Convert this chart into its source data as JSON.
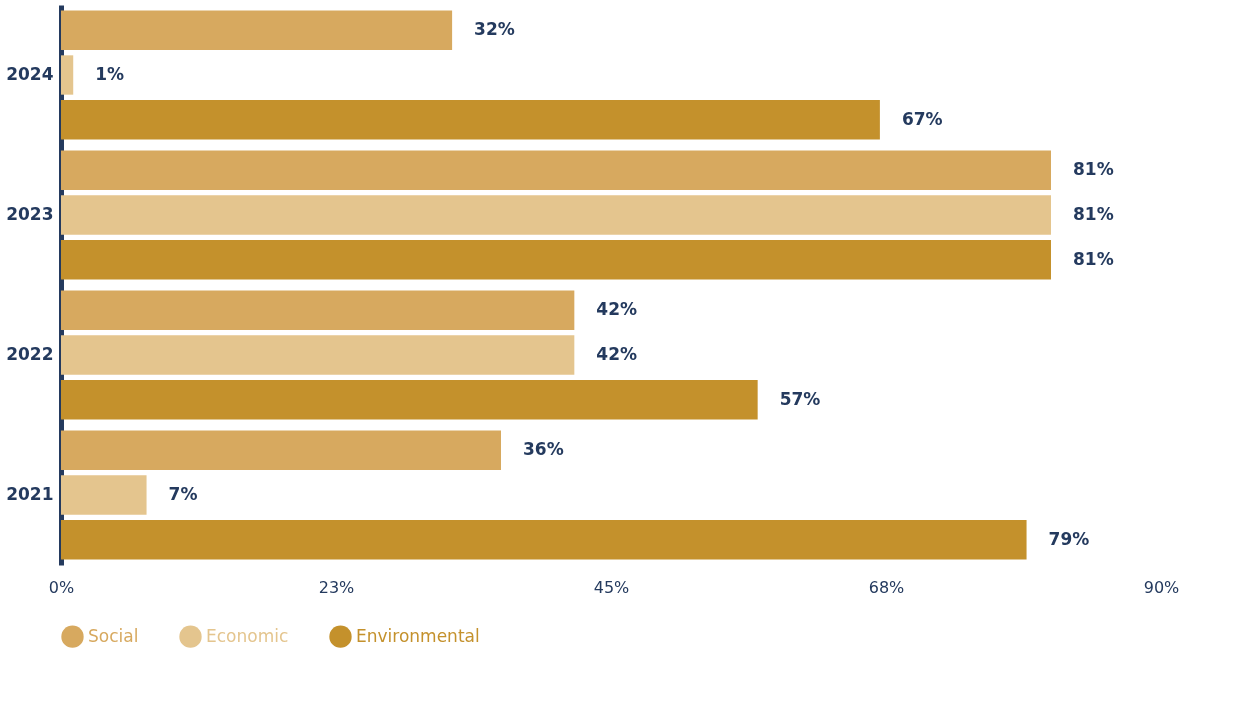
{
  "chart_data": {
    "type": "bar",
    "orientation": "horizontal",
    "categories": [
      "2024",
      "2023",
      "2022",
      "2021"
    ],
    "series": [
      {
        "name": "Social",
        "color": "#d7a95f",
        "values": [
          32,
          81,
          42,
          36
        ],
        "value_labels": [
          "32%",
          "81%",
          "42%",
          "36%"
        ]
      },
      {
        "name": "Economic",
        "color": "#e4c58e",
        "values": [
          1,
          81,
          42,
          7
        ],
        "value_labels": [
          "1%",
          "81%",
          "42%",
          "7%"
        ]
      },
      {
        "name": "Environmental",
        "color": "#c4912c",
        "values": [
          67,
          81,
          57,
          79
        ],
        "value_labels": [
          "67%",
          "81%",
          "57%",
          "79%"
        ]
      }
    ],
    "xlim": [
      0,
      90
    ],
    "xticks": [
      {
        "value": 0,
        "label": "0%"
      },
      {
        "value": 22.5,
        "label": "23%"
      },
      {
        "value": 45,
        "label": "45%"
      },
      {
        "value": 67.5,
        "label": "68%"
      },
      {
        "value": 90,
        "label": "90%"
      }
    ],
    "grid": false,
    "legend": "bottom left"
  }
}
